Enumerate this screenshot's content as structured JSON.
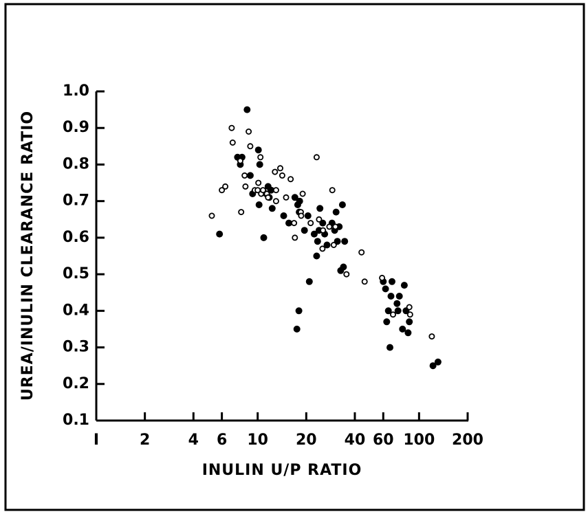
{
  "chart_data": {
    "type": "scatter",
    "title": "",
    "xlabel": "INULIN U/P RATIO",
    "ylabel": "UREA/INULIN CLEARANCE RATIO",
    "x_scale": "log",
    "xlim": [
      1,
      200
    ],
    "ylim": [
      0.1,
      1.0
    ],
    "x_ticks": [
      1,
      2,
      4,
      6,
      10,
      20,
      40,
      60,
      100,
      200
    ],
    "x_tick_labels": [
      "I",
      "2",
      "4",
      "6",
      "10",
      "20",
      "40",
      "60",
      "100",
      "200"
    ],
    "y_ticks": [
      0.1,
      0.2,
      0.3,
      0.4,
      0.5,
      0.6,
      0.7,
      0.8,
      0.9,
      1.0
    ],
    "y_tick_labels": [
      "0.1",
      "0.2",
      "0.3",
      "0.4",
      "0.5",
      "0.6",
      "0.7",
      "0.8",
      "0.9",
      "1.0"
    ],
    "grid": false,
    "legend": "none",
    "series": [
      {
        "marker": "filled-circle",
        "color": "#000000",
        "points": [
          [
            5.8,
            0.61
          ],
          [
            7.5,
            0.82
          ],
          [
            7.8,
            0.8
          ],
          [
            8.0,
            0.82
          ],
          [
            8.6,
            0.95
          ],
          [
            9.0,
            0.77
          ],
          [
            9.3,
            0.72
          ],
          [
            10.1,
            0.84
          ],
          [
            10.3,
            0.8
          ],
          [
            10.2,
            0.69
          ],
          [
            10.9,
            0.6
          ],
          [
            11.3,
            0.72
          ],
          [
            11.6,
            0.74
          ],
          [
            11.8,
            0.71
          ],
          [
            12.1,
            0.73
          ],
          [
            12.3,
            0.68
          ],
          [
            14.5,
            0.66
          ],
          [
            15.6,
            0.64
          ],
          [
            17.0,
            0.71
          ],
          [
            17.7,
            0.69
          ],
          [
            18.1,
            0.67
          ],
          [
            18.2,
            0.7
          ],
          [
            17.5,
            0.35
          ],
          [
            18.0,
            0.4
          ],
          [
            19.5,
            0.62
          ],
          [
            20.5,
            0.66
          ],
          [
            20.9,
            0.48
          ],
          [
            22.4,
            0.61
          ],
          [
            23.2,
            0.55
          ],
          [
            23.5,
            0.59
          ],
          [
            24.0,
            0.62
          ],
          [
            24.3,
            0.68
          ],
          [
            25.3,
            0.64
          ],
          [
            26.0,
            0.61
          ],
          [
            26.9,
            0.58
          ],
          [
            28.9,
            0.64
          ],
          [
            30.0,
            0.62
          ],
          [
            30.6,
            0.67
          ],
          [
            31.2,
            0.59
          ],
          [
            32.0,
            0.63
          ],
          [
            32.7,
            0.51
          ],
          [
            33.5,
            0.69
          ],
          [
            34.0,
            0.52
          ],
          [
            34.6,
            0.59
          ],
          [
            60.0,
            0.48
          ],
          [
            62.0,
            0.46
          ],
          [
            63.0,
            0.37
          ],
          [
            64.5,
            0.4
          ],
          [
            66.0,
            0.3
          ],
          [
            67.0,
            0.44
          ],
          [
            68.0,
            0.48
          ],
          [
            73.0,
            0.42
          ],
          [
            74.0,
            0.4
          ],
          [
            75.5,
            0.44
          ],
          [
            79.0,
            0.35
          ],
          [
            81.0,
            0.47
          ],
          [
            83.0,
            0.4
          ],
          [
            85.5,
            0.34
          ],
          [
            87.0,
            0.37
          ],
          [
            122.0,
            0.25
          ],
          [
            131.0,
            0.26
          ]
        ]
      },
      {
        "marker": "open-circle",
        "color": "#000000",
        "points": [
          [
            5.2,
            0.66
          ],
          [
            6.0,
            0.73
          ],
          [
            6.3,
            0.74
          ],
          [
            6.9,
            0.9
          ],
          [
            7.0,
            0.86
          ],
          [
            7.8,
            0.81
          ],
          [
            7.9,
            0.67
          ],
          [
            8.3,
            0.77
          ],
          [
            8.4,
            0.74
          ],
          [
            8.8,
            0.89
          ],
          [
            9.0,
            0.85
          ],
          [
            9.6,
            0.73
          ],
          [
            10.0,
            0.73
          ],
          [
            10.1,
            0.75
          ],
          [
            10.4,
            0.82
          ],
          [
            10.5,
            0.72
          ],
          [
            10.8,
            0.73
          ],
          [
            11.4,
            0.72
          ],
          [
            11.6,
            0.71
          ],
          [
            12.8,
            0.78
          ],
          [
            13.0,
            0.73
          ],
          [
            13.0,
            0.7
          ],
          [
            13.8,
            0.79
          ],
          [
            14.2,
            0.77
          ],
          [
            15.0,
            0.71
          ],
          [
            16.0,
            0.76
          ],
          [
            16.8,
            0.64
          ],
          [
            17.0,
            0.6
          ],
          [
            18.5,
            0.67
          ],
          [
            19.0,
            0.72
          ],
          [
            18.6,
            0.66
          ],
          [
            21.3,
            0.64
          ],
          [
            23.2,
            0.82
          ],
          [
            24.0,
            0.65
          ],
          [
            25.2,
            0.57
          ],
          [
            25.4,
            0.62
          ],
          [
            27.8,
            0.63
          ],
          [
            29.0,
            0.73
          ],
          [
            29.6,
            0.58
          ],
          [
            30.3,
            0.63
          ],
          [
            35.5,
            0.5
          ],
          [
            44.0,
            0.56
          ],
          [
            46.0,
            0.48
          ],
          [
            59.0,
            0.49
          ],
          [
            69.0,
            0.39
          ],
          [
            87.0,
            0.41
          ],
          [
            88.0,
            0.39
          ],
          [
            120.0,
            0.33
          ]
        ]
      }
    ]
  }
}
